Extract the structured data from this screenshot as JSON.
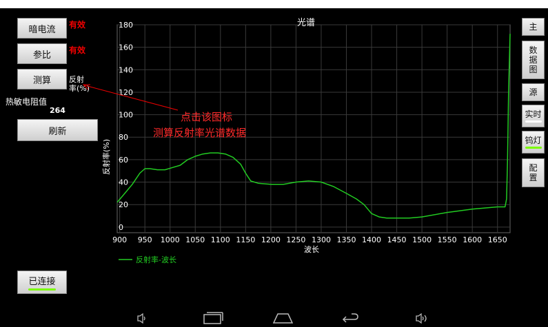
{
  "left_panel": {
    "dark_current_label": "暗电流",
    "dark_current_status": "有效",
    "reference_label": "参比",
    "reference_status": "有效",
    "measure_label": "测算",
    "measure_side_label": "反射\n率(%)",
    "thermistor_label": "热敏电阻值",
    "thermistor_value": "264",
    "refresh_label": "刷新",
    "connected_label": "已连接",
    "connected_color": "#7cfc00"
  },
  "annotation": {
    "line1": "点击该图标",
    "line2": "测算反射率光谱数据",
    "color": "#ff2a2a"
  },
  "right_panel": {
    "main_label": "主",
    "data_chart_label": "数\n据\n图",
    "source_label": "源",
    "realtime_label": "实时",
    "realtime_indicator": "#ffffff",
    "tungsten_label": "钨灯",
    "tungsten_indicator": "#7cfc00",
    "config_label": "配\n置"
  },
  "nav_icons": [
    "volume-down-icon",
    "recents-icon",
    "home-icon",
    "back-icon",
    "volume-up-icon"
  ],
  "chart_data": {
    "type": "line",
    "title": "光谱",
    "xlabel": "波长",
    "ylabel": "反射率(%)",
    "xlim": [
      895,
      1675
    ],
    "ylim": [
      -5,
      180
    ],
    "xticks": [
      900,
      950,
      1000,
      1050,
      1100,
      1150,
      1200,
      1250,
      1300,
      1350,
      1400,
      1450,
      1500,
      1550,
      1600,
      1650
    ],
    "yticks": [
      0,
      20,
      40,
      60,
      80,
      100,
      120,
      140,
      160,
      180
    ],
    "grid": true,
    "legend_position": "bottom-left",
    "series": [
      {
        "name": "反射率-波长",
        "color": "#22cc22",
        "x": [
          895,
          910,
          925,
          940,
          950,
          960,
          975,
          990,
          1005,
          1020,
          1035,
          1050,
          1065,
          1080,
          1095,
          1110,
          1125,
          1140,
          1150,
          1160,
          1175,
          1200,
          1225,
          1250,
          1275,
          1300,
          1325,
          1350,
          1370,
          1385,
          1400,
          1415,
          1430,
          1450,
          1475,
          1500,
          1550,
          1600,
          1650,
          1665,
          1668,
          1670,
          1672,
          1675
        ],
        "y": [
          22,
          30,
          38,
          48,
          52,
          52,
          51,
          51,
          53,
          55,
          60,
          63,
          65,
          66,
          66,
          65,
          62,
          56,
          48,
          41,
          39,
          38,
          38,
          40,
          41,
          40,
          36,
          30,
          25,
          20,
          12,
          9,
          8,
          8,
          8,
          9,
          13,
          16,
          18,
          18,
          25,
          60,
          120,
          172
        ]
      }
    ]
  }
}
